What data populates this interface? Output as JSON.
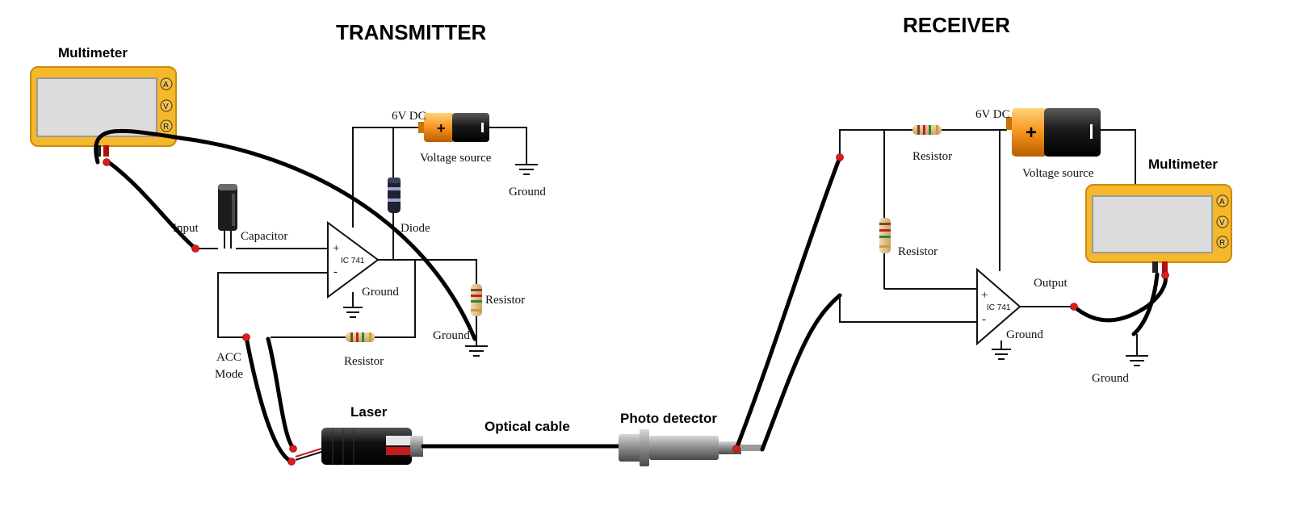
{
  "titles": {
    "transmitter": "TRANSMITTER",
    "receiver": "RECEIVER"
  },
  "multimeter": {
    "label": "Multimeter",
    "buttons": [
      "A",
      "V",
      "R"
    ]
  },
  "transmitter": {
    "voltage_label": "6V DC",
    "voltage_source": "Voltage source",
    "ground": "Ground",
    "diode": "Diode",
    "capacitor": "Capacitor",
    "input": "Input",
    "ic": "IC 741",
    "plus": "+",
    "minus": "-",
    "opamp_ground": "Ground",
    "resistor_right": "Resistor",
    "ground_right": "Ground",
    "resistor_bottom": "Resistor",
    "acc_mode_line1": "ACC",
    "acc_mode_line2": "Mode"
  },
  "link": {
    "laser": "Laser",
    "optical_cable": "Optical cable",
    "photo_detector": "Photo detector"
  },
  "receiver": {
    "voltage_label": "6V DC",
    "voltage_source": "Voltage source",
    "resistor_top": "Resistor",
    "resistor_left": "Resistor",
    "ic": "IC 741",
    "plus": "+",
    "minus": "-",
    "opamp_ground": "Ground",
    "output": "Output",
    "ground": "Ground",
    "multimeter": "Multimeter"
  },
  "colors": {
    "multimeter_body": "#f5b82a",
    "multimeter_screen": "#dcdcdc",
    "battery_orange": "#f7941d",
    "battery_black": "#1a1a1a",
    "connector_red": "#e0191b"
  }
}
